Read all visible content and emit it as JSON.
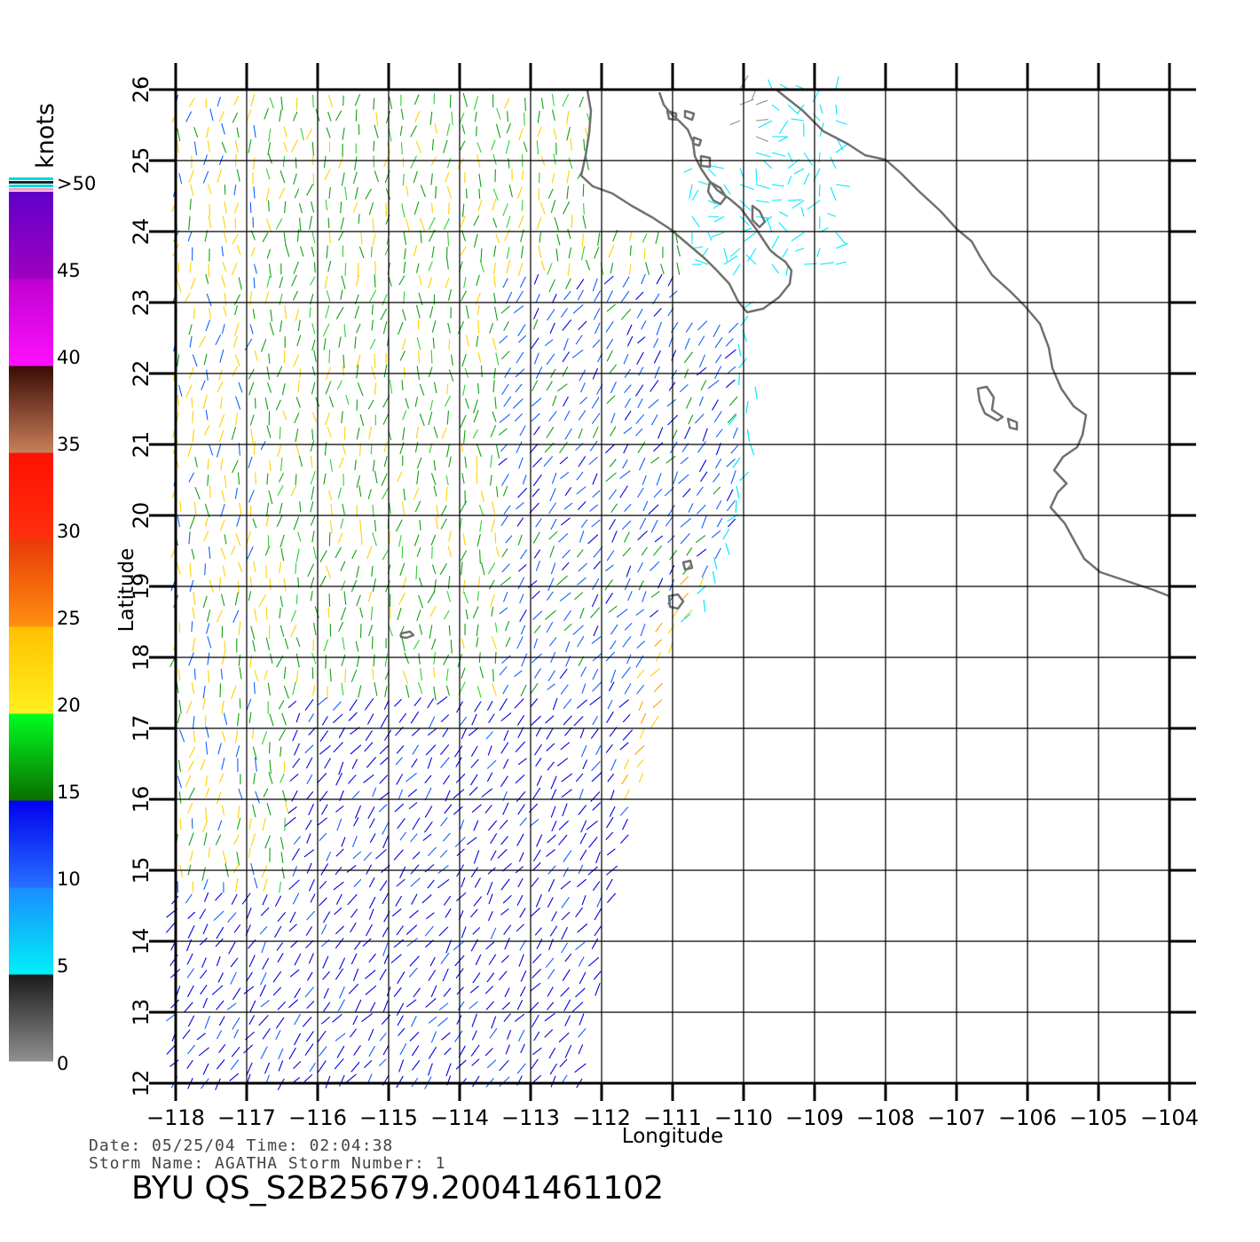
{
  "map": {
    "lon_range": [
      -118,
      -104
    ],
    "lat_range": [
      12,
      26
    ],
    "x_ticks": [
      -118,
      -117,
      -116,
      -115,
      -114,
      -113,
      -112,
      -111,
      -110,
      -109,
      -108,
      -107,
      -106,
      -105,
      -104
    ],
    "y_ticks": [
      12,
      13,
      14,
      15,
      16,
      17,
      18,
      19,
      20,
      21,
      22,
      23,
      24,
      25,
      26
    ],
    "x_tick_labels": [
      "−118",
      "−117",
      "−116",
      "−115",
      "−114",
      "−113",
      "−112",
      "−111",
      "−110",
      "−109",
      "−108",
      "−107",
      "−106",
      "−105",
      "−104"
    ],
    "y_tick_labels": [
      "12",
      "13",
      "14",
      "15",
      "16",
      "17",
      "18",
      "19",
      "20",
      "21",
      "22",
      "23",
      "24",
      "25",
      "26"
    ],
    "xlabel": "Longitude",
    "ylabel": "Latitude",
    "grid": true
  },
  "legend": {
    "units": "knots",
    "labels": [
      "0",
      "5",
      "10",
      "15",
      "20",
      "25",
      "30",
      "35",
      "40",
      "45",
      ">50"
    ],
    "bands": [
      {
        "from": 0,
        "to": 5,
        "colors": [
          "#909090",
          "#1a1a1a"
        ]
      },
      {
        "from": 5,
        "to": 10,
        "colors": [
          "#00f0f8",
          "#1a8cff"
        ]
      },
      {
        "from": 10,
        "to": 15,
        "colors": [
          "#2870ff",
          "#0000ee"
        ]
      },
      {
        "from": 15,
        "to": 20,
        "colors": [
          "#0a6e00",
          "#00ff20"
        ]
      },
      {
        "from": 20,
        "to": 25,
        "colors": [
          "#fff020",
          "#ffc000"
        ]
      },
      {
        "from": 25,
        "to": 30,
        "colors": [
          "#ff9010",
          "#e83a08"
        ]
      },
      {
        "from": 30,
        "to": 35,
        "colors": [
          "#ff3010",
          "#ff1000"
        ]
      },
      {
        "from": 35,
        "to": 40,
        "colors": [
          "#c8805a",
          "#3a0a04"
        ]
      },
      {
        "from": 40,
        "to": 45,
        "colors": [
          "#ff10ff",
          "#c000d0"
        ]
      },
      {
        "from": 45,
        "to": 50,
        "colors": [
          "#a000c0",
          "#6000c8"
        ]
      }
    ]
  },
  "wind_colors": [
    "#909090",
    "#00e8ff",
    "#1060ff",
    "#0000e0",
    "#10a010",
    "#30d030",
    "#ffd000",
    "#ffa000",
    "#ff3000"
  ],
  "meta": {
    "date_line": "Date: 05/25/04   Time: 02:04:38",
    "storm_line": "Storm  Name: AGATHA   Storm  Number: 1",
    "file_id": "BYU  QS_S2B25679.20041461102"
  }
}
